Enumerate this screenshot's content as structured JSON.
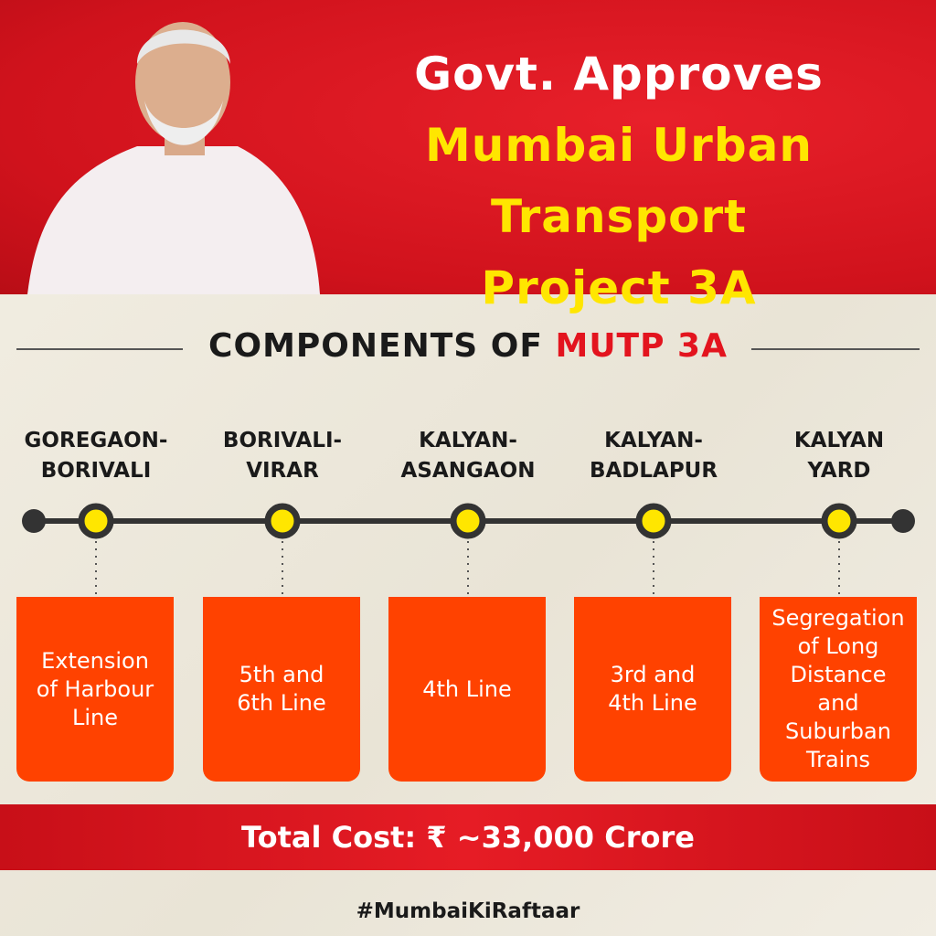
{
  "header": {
    "title_lines": [
      "Govt. Approves",
      "Mumbai Urban Transport",
      "Project 3A"
    ]
  },
  "section": {
    "heading": "COMPONENTS OF",
    "heading_highlight": "MUTP 3A"
  },
  "components": [
    {
      "name_lines": [
        "GOREGAON-",
        "BORIVALI"
      ],
      "description_lines": [
        "Extension",
        "of Harbour",
        "Line"
      ]
    },
    {
      "name_lines": [
        "BORIVALI-",
        "VIRAR"
      ],
      "description_lines": [
        "5th and",
        "6th Line"
      ]
    },
    {
      "name_lines": [
        "KALYAN-",
        "ASANGAON"
      ],
      "description_lines": [
        "4th Line"
      ]
    },
    {
      "name_lines": [
        "KALYAN-",
        "BADLAPUR"
      ],
      "description_lines": [
        "3rd and",
        "4th Line"
      ]
    },
    {
      "name_lines": [
        "KALYAN",
        "YARD"
      ],
      "description_lines": [
        "Segregation",
        "of Long",
        "Distance",
        "and",
        "Suburban",
        "Trains"
      ]
    }
  ],
  "footer": {
    "total_cost": "Total Cost: ₹ ~33,000 Crore",
    "hashtag": "#MumbaiKiRaftaar"
  }
}
